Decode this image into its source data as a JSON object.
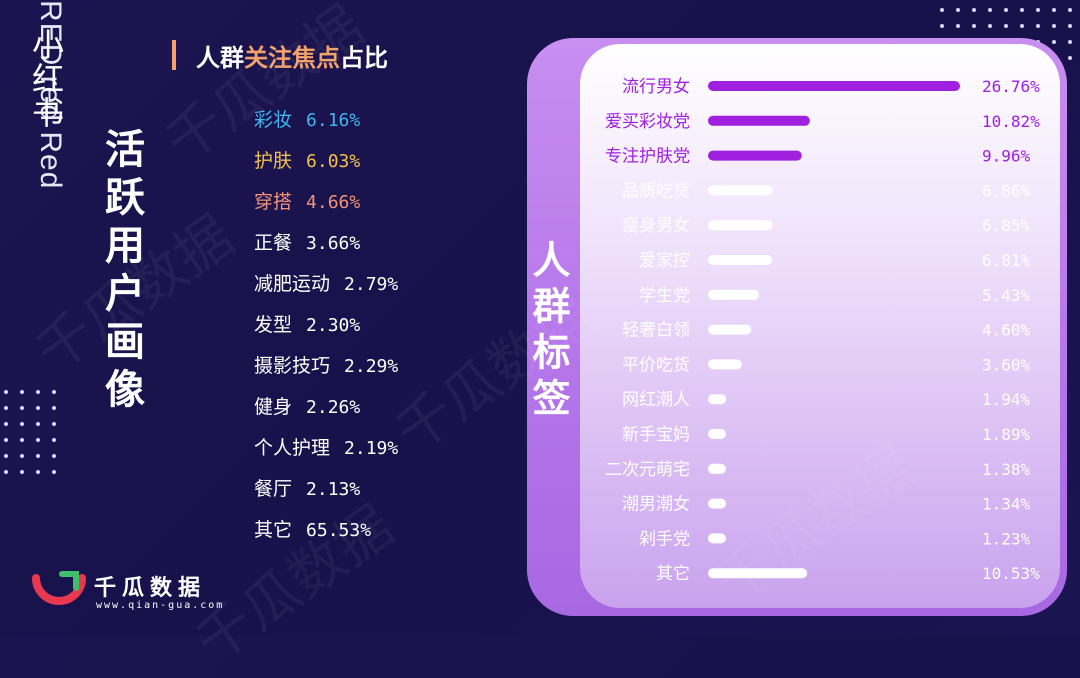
{
  "brand": {
    "vertical_latin": "RED red Red",
    "vertical_cn": "小红书"
  },
  "section_title": "活跃用户画像",
  "focus": {
    "title_prefix": "人群",
    "title_highlight": "关注焦点",
    "title_suffix": "占比",
    "items": [
      {
        "label": "彩妆",
        "value": "6.16%",
        "color": "#3fb6f0"
      },
      {
        "label": "护肤",
        "value": "6.03%",
        "color": "#f2c14e"
      },
      {
        "label": "穿搭",
        "value": "4.66%",
        "color": "#f0937a"
      },
      {
        "label": "正餐",
        "value": "3.66%",
        "color": "#ffffff"
      },
      {
        "label": "减肥运动",
        "value": "2.79%",
        "color": "#ffffff"
      },
      {
        "label": "发型",
        "value": "2.30%",
        "color": "#ffffff"
      },
      {
        "label": "摄影技巧",
        "value": "2.29%",
        "color": "#ffffff"
      },
      {
        "label": "健身",
        "value": "2.26%",
        "color": "#ffffff"
      },
      {
        "label": "个人护理",
        "value": "2.19%",
        "color": "#ffffff"
      },
      {
        "label": "餐厅",
        "value": "2.13%",
        "color": "#ffffff"
      },
      {
        "label": "其它",
        "value": "65.53%",
        "color": "#ffffff"
      }
    ]
  },
  "panel_label": "人群标签",
  "logo": {
    "name": "千瓜数据",
    "url": "www.qian-gua.com"
  },
  "watermark_text": "千瓜数据",
  "chart_data": {
    "type": "bar",
    "orientation": "horizontal",
    "categories": [
      "流行男女",
      "爱买彩妆党",
      "专注护肤党",
      "品质吃货",
      "瘦身男女",
      "爱家控",
      "学生党",
      "轻奢白领",
      "平价吃货",
      "网红潮人",
      "新手宝妈",
      "二次元萌宅",
      "潮男潮女",
      "剁手党",
      "其它"
    ],
    "values": [
      26.76,
      10.82,
      9.96,
      6.86,
      6.85,
      6.81,
      5.43,
      4.6,
      3.6,
      1.94,
      1.89,
      1.38,
      1.34,
      1.23,
      10.53
    ],
    "labels": [
      "26.76%",
      "10.82%",
      "9.96%",
      "6.86%",
      "6.85%",
      "6.81%",
      "5.43%",
      "4.60%",
      "3.60%",
      "1.94%",
      "1.89%",
      "1.38%",
      "1.34%",
      "1.23%",
      "10.53%"
    ],
    "highlight_count": 3,
    "colors": {
      "highlight": "#a020e0",
      "normal": "#ffffff",
      "highlight_text": "#a020e0",
      "normal_text": "#ffffff"
    },
    "xlim": [
      0,
      26.76
    ],
    "title": "",
    "xlabel": "",
    "ylabel": ""
  }
}
